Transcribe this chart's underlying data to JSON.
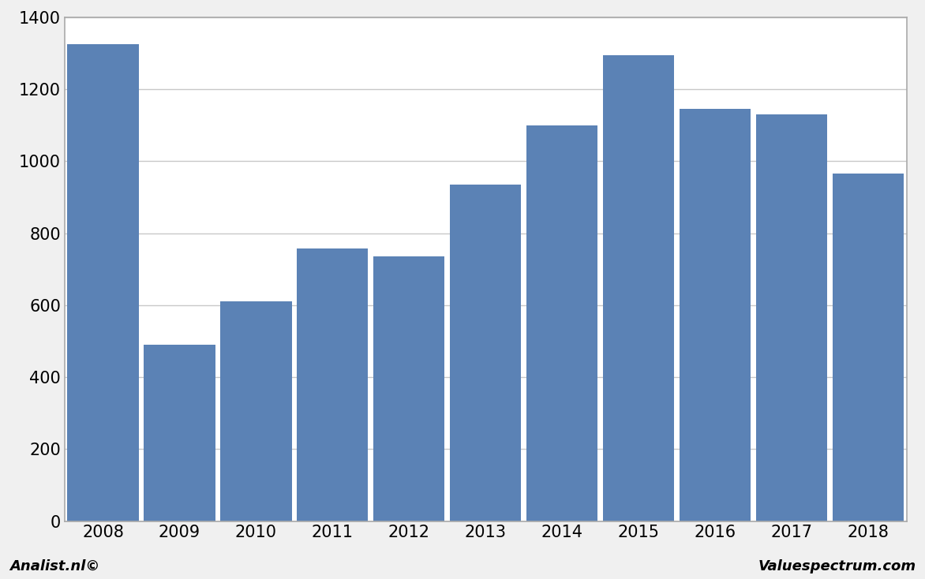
{
  "categories": [
    "2008",
    "2009",
    "2010",
    "2011",
    "2012",
    "2013",
    "2014",
    "2015",
    "2016",
    "2017",
    "2018"
  ],
  "values": [
    1325,
    490,
    610,
    758,
    735,
    935,
    1100,
    1295,
    1145,
    1130,
    965
  ],
  "bar_color": "#5b82b5",
  "ylim": [
    0,
    1400
  ],
  "yticks": [
    0,
    200,
    400,
    600,
    800,
    1000,
    1200,
    1400
  ],
  "background_color": "#f0f0f0",
  "plot_background_color": "#ffffff",
  "grid_color": "#c8c8c8",
  "footer_left": "Analist.nl©",
  "footer_right": "Valuespectrum.com",
  "border_color": "#aaaaaa"
}
